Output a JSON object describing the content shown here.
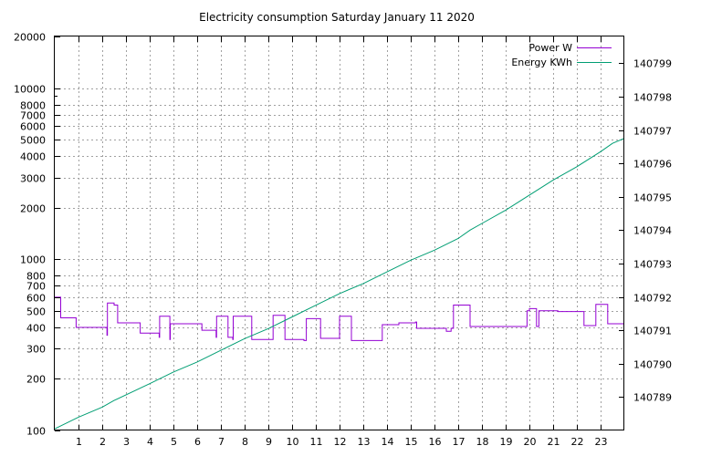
{
  "chart_data": {
    "type": "line",
    "title": "Electricity consumption Saturday January 11 2020",
    "x_axis": {
      "range": [
        0,
        24
      ],
      "ticks": [
        1,
        2,
        3,
        4,
        5,
        6,
        7,
        8,
        9,
        10,
        11,
        12,
        13,
        14,
        15,
        16,
        17,
        18,
        19,
        20,
        21,
        22,
        23
      ],
      "tick_labels": [
        "1",
        "2",
        "3",
        "4",
        "5",
        "6",
        "7",
        "8",
        "9",
        "10",
        "11",
        "12",
        "13",
        "14",
        "15",
        "16",
        "17",
        "18",
        "19",
        "20",
        "21",
        "22",
        "23"
      ]
    },
    "y_axis_left": {
      "scale": "log",
      "range": [
        100,
        20000
      ],
      "ticks": [
        100,
        200,
        300,
        400,
        500,
        600,
        700,
        800,
        1000,
        2000,
        3000,
        4000,
        5000,
        6000,
        7000,
        8000,
        10000,
        20000
      ],
      "tick_labels": [
        "100",
        "200",
        "300",
        "400",
        "500",
        "600",
        "700",
        "800",
        "1000",
        "2000",
        "3000",
        "4000",
        "5000",
        "6000",
        "7000",
        "8000",
        "10000",
        "20000"
      ]
    },
    "y_axis_right": {
      "scale": "linear",
      "range": [
        140788.0,
        140799.8
      ],
      "ticks": [
        140789,
        140790,
        140791,
        140792,
        140793,
        140794,
        140795,
        140796,
        140797,
        140798,
        140799
      ],
      "tick_labels": [
        "140789",
        "140790",
        "140791",
        "140792",
        "140793",
        "140794",
        "140795",
        "140796",
        "140797",
        "140798",
        "140799"
      ]
    },
    "grid": true,
    "legend_position": "top-right",
    "series": [
      {
        "name": "Power W",
        "axis": "left",
        "color": "#9400d3",
        "step": true,
        "points": [
          [
            0.0,
            600
          ],
          [
            0.25,
            455
          ],
          [
            0.9,
            400
          ],
          [
            2.2,
            360
          ],
          [
            2.22,
            555
          ],
          [
            2.5,
            540
          ],
          [
            2.65,
            425
          ],
          [
            3.6,
            370
          ],
          [
            4.4,
            350
          ],
          [
            4.42,
            465
          ],
          [
            4.85,
            340
          ],
          [
            4.87,
            420
          ],
          [
            6.2,
            385
          ],
          [
            6.8,
            350
          ],
          [
            6.82,
            465
          ],
          [
            7.3,
            350
          ],
          [
            7.5,
            340
          ],
          [
            7.52,
            465
          ],
          [
            8.3,
            340
          ],
          [
            9.2,
            470
          ],
          [
            9.7,
            340
          ],
          [
            10.5,
            335
          ],
          [
            10.6,
            450
          ],
          [
            11.2,
            345
          ],
          [
            11.6,
            345
          ],
          [
            12.0,
            465
          ],
          [
            12.5,
            335
          ],
          [
            13.8,
            415
          ],
          [
            14.5,
            425
          ],
          [
            15.2,
            430
          ],
          [
            15.25,
            395
          ],
          [
            16.5,
            380
          ],
          [
            16.7,
            395
          ],
          [
            16.8,
            540
          ],
          [
            17.5,
            405
          ],
          [
            19.0,
            405
          ],
          [
            19.9,
            500
          ],
          [
            20.0,
            515
          ],
          [
            20.3,
            405
          ],
          [
            20.4,
            500
          ],
          [
            21.2,
            495
          ],
          [
            22.3,
            410
          ],
          [
            22.8,
            545
          ],
          [
            23.3,
            420
          ],
          [
            24.0,
            420
          ]
        ]
      },
      {
        "name": "Energy KWh",
        "axis": "right",
        "color": "#009e73",
        "step": false,
        "points": [
          [
            0.0,
            140788.05
          ],
          [
            1.0,
            140788.4
          ],
          [
            2.0,
            140788.7
          ],
          [
            2.5,
            140788.9
          ],
          [
            4.0,
            140789.4
          ],
          [
            5.0,
            140789.75
          ],
          [
            6.0,
            140790.05
          ],
          [
            7.0,
            140790.4
          ],
          [
            8.0,
            140790.75
          ],
          [
            9.0,
            140791.05
          ],
          [
            10.0,
            140791.4
          ],
          [
            11.0,
            140791.75
          ],
          [
            12.0,
            140792.1
          ],
          [
            13.0,
            140792.4
          ],
          [
            14.0,
            140792.75
          ],
          [
            15.0,
            140793.1
          ],
          [
            16.0,
            140793.4
          ],
          [
            17.0,
            140793.75
          ],
          [
            17.5,
            140794.0
          ],
          [
            18.0,
            140794.2
          ],
          [
            19.0,
            140794.6
          ],
          [
            20.0,
            140795.05
          ],
          [
            21.0,
            140795.5
          ],
          [
            22.0,
            140795.9
          ],
          [
            23.0,
            140796.35
          ],
          [
            23.5,
            140796.6
          ],
          [
            24.0,
            140796.75
          ]
        ]
      }
    ]
  }
}
